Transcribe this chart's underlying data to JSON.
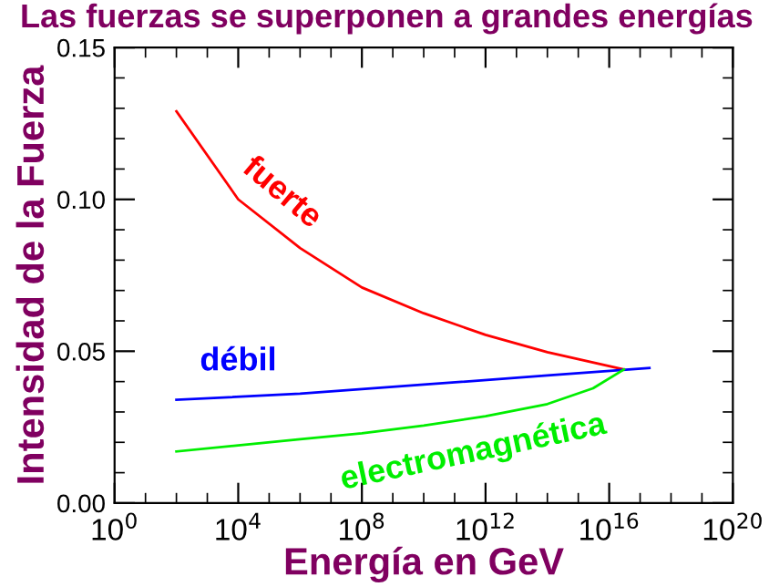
{
  "chart_data": {
    "type": "line",
    "title": "Las fuerzas se superponen a grandes energías",
    "xlabel": "Energía en GeV",
    "ylabel": "Intensidad de la Fuerza",
    "log": "x",
    "series": [
      {
        "color": "#ff0000",
        "x": [
          100.0,
          10000.0,
          1000000.0,
          100000000.0,
          10000000000.0,
          1000000000000.0,
          100000000000000.0,
          3e+16
        ],
        "values": [
          0.129,
          0.1,
          0.084,
          0.071,
          0.0625,
          0.0554,
          0.0497,
          0.044
        ]
      },
      {
        "color": "#0000ff",
        "x": [
          100.0,
          1000000.0,
          10000000000.0,
          100000000000000.0,
          2e+17
        ],
        "values": [
          0.034,
          0.036,
          0.039,
          0.042,
          0.0445
        ]
      },
      {
        "color": "#00ee00",
        "x": [
          100.0,
          10000.0,
          1000000.0,
          100000000.0,
          10000000000.0,
          1000000000000.0,
          100000000000000.0,
          3000000000000000.0,
          3e+16
        ],
        "values": [
          0.017,
          0.019,
          0.021,
          0.023,
          0.0255,
          0.0286,
          0.0326,
          0.0378,
          0.044
        ]
      }
    ],
    "annotations": [
      "fuerte",
      "débil",
      "electromagnética"
    ],
    "xlim": [
      1,
      1e+20
    ],
    "xticks": [
      {
        "value": 1,
        "label": "10$^{0}$"
      },
      {
        "value": 10000.0,
        "label": "10$^{4}$"
      },
      {
        "value": 100000000.0,
        "label": "10$^{8}$"
      },
      {
        "value": 1000000000000.0,
        "label": "10$^{12}$"
      },
      {
        "value": 1e+16,
        "label": "10$^{16}$"
      },
      {
        "value": 1e+20,
        "label": "10$^{20}$"
      }
    ],
    "ylim": [
      0,
      0.15
    ],
    "yticks": [
      {
        "value": 0,
        "label": "0.00"
      },
      {
        "value": 0.05,
        "label": "0.05"
      },
      {
        "value": 0.1,
        "label": "0.10"
      },
      {
        "value": 0.15,
        "label": "0.15"
      }
    ],
    "grid": false,
    "legend": false
  }
}
